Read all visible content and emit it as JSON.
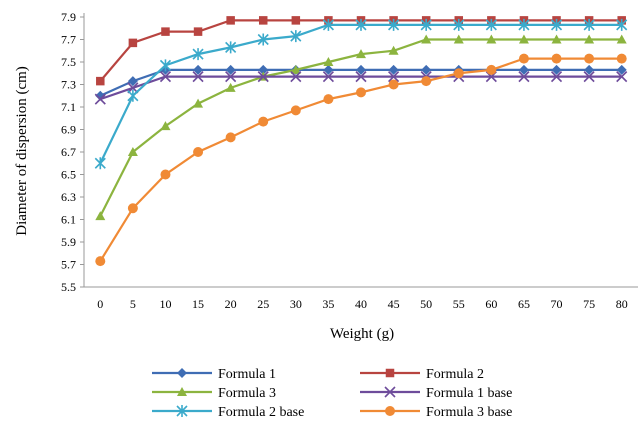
{
  "chart_data": {
    "type": "line",
    "title": "",
    "xlabel": "Weight (g)",
    "ylabel": "Diameter of dispersion (cm)",
    "x": [
      0,
      5,
      10,
      15,
      20,
      25,
      30,
      35,
      40,
      45,
      50,
      55,
      60,
      65,
      70,
      75,
      80
    ],
    "ylim": [
      5.5,
      7.9
    ],
    "yticks": [
      5.5,
      5.7,
      5.9,
      6.1,
      6.3,
      6.5,
      6.7,
      6.9,
      7.1,
      7.3,
      7.5,
      7.7,
      7.9
    ],
    "ytick_labels": [
      "5.5",
      "5.7",
      "5.9",
      "6.1",
      "6.3",
      "6.5",
      "6.7",
      "6.9",
      "7.1",
      "7.3",
      "7.5",
      "7.7",
      "7.9"
    ],
    "xtick_labels": [
      "0",
      "5",
      "10",
      "15",
      "20",
      "25",
      "30",
      "35",
      "40",
      "45",
      "50",
      "55",
      "60",
      "65",
      "70",
      "75",
      "80"
    ],
    "grid": false,
    "legend_position": "bottom",
    "series": [
      {
        "name": "Formula 1",
        "color": "#3F6DB4",
        "marker": "diamond",
        "values": [
          7.2,
          7.33,
          7.43,
          7.43,
          7.43,
          7.43,
          7.43,
          7.43,
          7.43,
          7.43,
          7.43,
          7.43,
          7.43,
          7.43,
          7.43,
          7.43,
          7.43
        ]
      },
      {
        "name": "Formula 2",
        "color": "#B84440",
        "marker": "square",
        "values": [
          7.33,
          7.67,
          7.77,
          7.77,
          7.87,
          7.87,
          7.87,
          7.87,
          7.87,
          7.87,
          7.87,
          7.87,
          7.87,
          7.87,
          7.87,
          7.87,
          7.87
        ]
      },
      {
        "name": "Formula 3",
        "color": "#8CB43F",
        "marker": "triangle",
        "values": [
          6.13,
          6.7,
          6.93,
          7.13,
          7.27,
          7.37,
          7.43,
          7.5,
          7.57,
          7.6,
          7.7,
          7.7,
          7.7,
          7.7,
          7.7,
          7.7,
          7.7
        ]
      },
      {
        "name": "Formula 1 base",
        "color": "#6E4C9B",
        "marker": "x",
        "values": [
          7.17,
          7.27,
          7.37,
          7.37,
          7.37,
          7.37,
          7.37,
          7.37,
          7.37,
          7.37,
          7.37,
          7.37,
          7.37,
          7.37,
          7.37,
          7.37,
          7.37
        ]
      },
      {
        "name": "Formula 2 base",
        "color": "#3BAACB",
        "marker": "star",
        "values": [
          6.6,
          7.2,
          7.47,
          7.57,
          7.63,
          7.7,
          7.73,
          7.83,
          7.83,
          7.83,
          7.83,
          7.83,
          7.83,
          7.83,
          7.83,
          7.83,
          7.83
        ]
      },
      {
        "name": "Formula 3 base",
        "color": "#F08A35",
        "marker": "circle",
        "values": [
          5.73,
          6.2,
          6.5,
          6.7,
          6.83,
          6.97,
          7.07,
          7.17,
          7.23,
          7.3,
          7.33,
          7.4,
          7.43,
          7.53,
          7.53,
          7.53,
          7.53
        ]
      }
    ]
  }
}
